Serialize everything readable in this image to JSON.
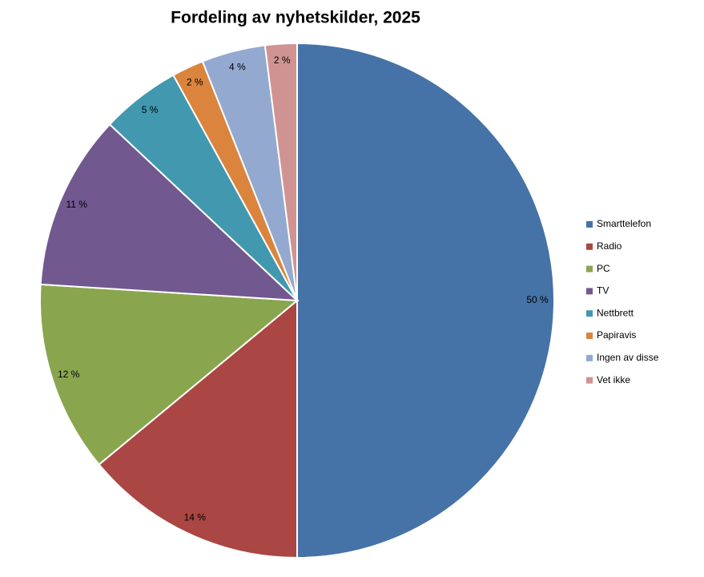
{
  "chart_data": {
    "type": "pie",
    "title": "Fordeling av nyhetskilder, 2025",
    "categories": [
      "Smarttelefon",
      "Radio",
      "PC",
      "TV",
      "Nettbrett",
      "Papiravis",
      "Ingen av disse",
      "Vet ikke"
    ],
    "values": [
      50,
      14,
      12,
      11,
      5,
      2,
      4,
      2
    ],
    "value_labels": [
      "50 %",
      "14 %",
      "12 %",
      "11 %",
      "5 %",
      "2 %",
      "4 %",
      "2 %"
    ],
    "colors": [
      "#4572a7",
      "#aa4643",
      "#89a54e",
      "#71588f",
      "#4198af",
      "#db843d",
      "#93a9cf",
      "#d19392"
    ],
    "legend": "right"
  }
}
